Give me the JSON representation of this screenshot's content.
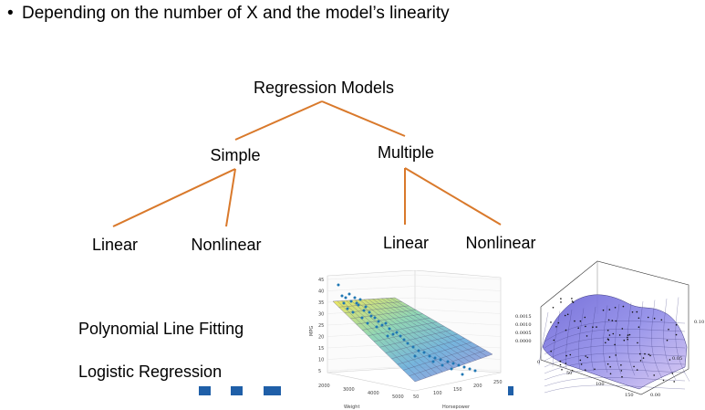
{
  "heading": {
    "bullet": "•",
    "text": "Depending on the number of X and the model’s linearity"
  },
  "tree": {
    "root": "Regression Models",
    "simple": "Simple",
    "multiple": "Multiple",
    "simple_linear": "Linear",
    "simple_nonlinear": "Nonlinear",
    "multiple_linear": "Linear",
    "multiple_nonlinear": "Nonlinear",
    "line_color": "#d9792b"
  },
  "other_models": [
    "Polynomial Line Fitting",
    "Logistic Regression"
  ],
  "plot_left": {
    "ylabel": "MPG",
    "xlabel_weight": "Weight",
    "xlabel_horsepower": "Horsepower",
    "y_ticks": [
      "45",
      "40",
      "35",
      "30",
      "25",
      "20",
      "15",
      "10",
      "5"
    ],
    "weight_ticks": [
      "2000",
      "3000",
      "4000",
      "5000"
    ],
    "horsepower_ticks": [
      "50",
      "100",
      "150",
      "200",
      "250"
    ],
    "point_color": "#1f77b4"
  },
  "plot_right": {
    "z_ticks": [
      "0.0015",
      "0.0010",
      "0.0005",
      "0.0000"
    ],
    "x_ticks": [
      "0",
      "50",
      "100",
      "150"
    ],
    "y_ticks": [
      "0.00",
      "0.05",
      "0.10"
    ]
  }
}
